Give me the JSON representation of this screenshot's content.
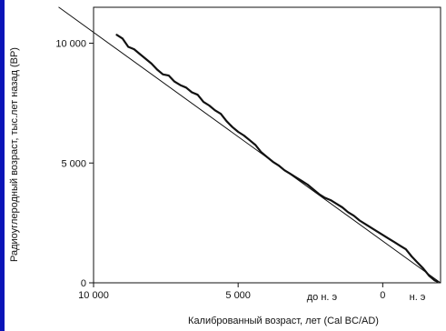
{
  "chart_data": {
    "type": "line",
    "title": "",
    "xlabel": "Калиброванный возраст, лет  (Cal BC/AD)",
    "ylabel": "Радиоуглеродный возраст, тыс.лет назад (BP)",
    "x_direction": "reversed",
    "xlim": [
      10000,
      -2000
    ],
    "ylim": [
      0,
      11500
    ],
    "x_ticks": [
      {
        "value": 10000,
        "label": "10 000"
      },
      {
        "value": 5000,
        "label": "5 000"
      },
      {
        "value": 0,
        "label": "0"
      }
    ],
    "x_era_labels": [
      {
        "value": 2100,
        "label": "до н. э"
      },
      {
        "value": -1200,
        "label": "н. э"
      }
    ],
    "y_ticks": [
      {
        "value": 0,
        "label": "0"
      },
      {
        "value": 5000,
        "label": "5 000"
      },
      {
        "value": 10000,
        "label": "10 000"
      }
    ],
    "grid": false,
    "legend": "none",
    "series": [
      {
        "role": "reference-line",
        "x": [
          11200,
          -2000
        ],
        "y": [
          11500,
          0
        ]
      },
      {
        "role": "calibration-curve",
        "x": [
          9200,
          9000,
          8800,
          8600,
          8400,
          8200,
          8000,
          7800,
          7600,
          7400,
          7200,
          7000,
          6800,
          6600,
          6400,
          6200,
          6000,
          5800,
          5600,
          5400,
          5200,
          5000,
          4800,
          4600,
          4400,
          4200,
          4000,
          3800,
          3600,
          3400,
          3200,
          3000,
          2800,
          2600,
          2400,
          2200,
          2000,
          1800,
          1600,
          1400,
          1200,
          1000,
          800,
          600,
          400,
          200,
          0,
          -200,
          -400,
          -600,
          -800,
          -1000,
          -1200,
          -1400,
          -1600,
          -1800,
          -1900
        ],
        "y": [
          10350,
          10200,
          9850,
          9750,
          9550,
          9350,
          9150,
          8900,
          8700,
          8650,
          8400,
          8250,
          8150,
          7950,
          7850,
          7550,
          7400,
          7200,
          7050,
          6750,
          6500,
          6300,
          6150,
          5950,
          5750,
          5450,
          5250,
          5050,
          4900,
          4700,
          4550,
          4400,
          4250,
          4100,
          3900,
          3700,
          3550,
          3450,
          3300,
          3150,
          2950,
          2800,
          2600,
          2450,
          2300,
          2150,
          2000,
          1850,
          1700,
          1550,
          1400,
          1100,
          850,
          600,
          300,
          100,
          50
        ]
      }
    ]
  }
}
